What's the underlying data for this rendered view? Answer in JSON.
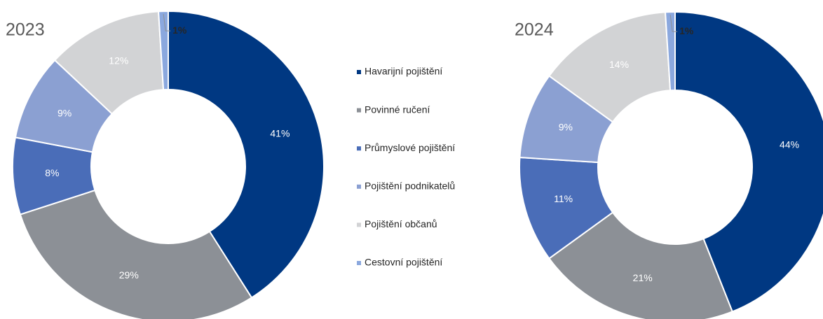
{
  "chart_data": [
    {
      "type": "donut",
      "title": "2023",
      "categories": [
        "Havarijní pojištění",
        "Povinné ručení",
        "Průmyslové pojištění",
        "Pojištění podnikatelů",
        "Pojištění občanů",
        "Cestovní pojištění"
      ],
      "values": [
        41,
        29,
        8,
        9,
        12,
        1
      ],
      "value_labels": [
        "41%",
        "29%",
        "8%",
        "9%",
        "12%",
        "1%"
      ],
      "colors": [
        "#003882",
        "#8c9096",
        "#4a6db8",
        "#8ba0d2",
        "#d2d3d5",
        "#8ba8de"
      ]
    },
    {
      "type": "donut",
      "title": "2024",
      "categories": [
        "Havarijní pojištění",
        "Povinné ručení",
        "Průmyslové pojištění",
        "Pojištění podnikatelů",
        "Pojištění občanů",
        "Cestovní pojištění"
      ],
      "values": [
        44,
        21,
        11,
        9,
        14,
        1
      ],
      "value_labels": [
        "44%",
        "21%",
        "11%",
        "9%",
        "14%",
        "1%"
      ],
      "colors": [
        "#003882",
        "#8c9096",
        "#4a6db8",
        "#8ba0d2",
        "#d2d3d5",
        "#8ba8de"
      ]
    }
  ]
}
